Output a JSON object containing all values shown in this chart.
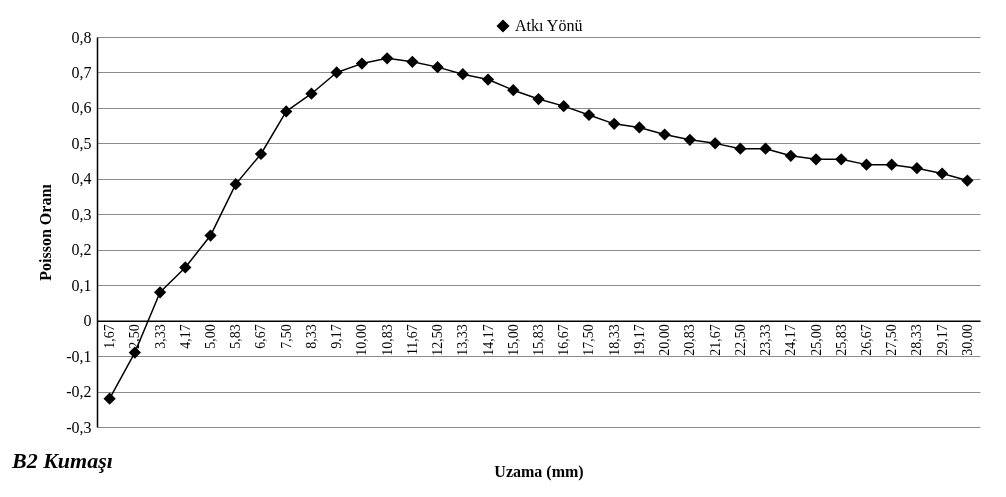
{
  "chart_data": {
    "type": "line",
    "xlabel": "Uzama (mm)",
    "ylabel": "Poisson Oranı",
    "annotations": [
      "B2 Kumaşı"
    ],
    "categories": [
      "1,67",
      "2,50",
      "3,33",
      "4,17",
      "5,00",
      "5,83",
      "6,67",
      "7,50",
      "8,33",
      "9,17",
      "10,00",
      "10,83",
      "11,67",
      "12,50",
      "13,33",
      "14,17",
      "15,00",
      "15,83",
      "16,67",
      "17,50",
      "18,33",
      "19,17",
      "20,00",
      "20,83",
      "21,67",
      "22,50",
      "23,33",
      "24,17",
      "25,00",
      "25,83",
      "26,67",
      "27,50",
      "28,33",
      "29,17",
      "30,00"
    ],
    "series": [
      {
        "name": "Atkı Yönü",
        "color": "#000000",
        "values": [
          -0.22,
          -0.09,
          0.08,
          0.15,
          0.24,
          0.385,
          0.47,
          0.59,
          0.64,
          0.7,
          0.725,
          0.74,
          0.73,
          0.715,
          0.695,
          0.68,
          0.65,
          0.625,
          0.605,
          0.58,
          0.555,
          0.545,
          0.525,
          0.51,
          0.5,
          0.485,
          0.485,
          0.465,
          0.455,
          0.455,
          0.44,
          0.44,
          0.43,
          0.415,
          0.395
        ]
      }
    ],
    "ylim": [
      -0.3,
      0.8
    ],
    "yticks": [
      {
        "value": -0.3,
        "label": "-0,3"
      },
      {
        "value": -0.2,
        "label": "-0,2"
      },
      {
        "value": -0.1,
        "label": "-0,1"
      },
      0,
      {
        "value": 0.1,
        "label": "0,1"
      },
      {
        "value": 0.2,
        "label": "0,2"
      },
      {
        "value": 0.3,
        "label": "0,3"
      },
      {
        "value": 0.4,
        "label": "0,4"
      },
      {
        "value": 0.5,
        "label": "0,5"
      },
      {
        "value": 0.6,
        "label": "0,6"
      },
      {
        "value": 0.7,
        "label": "0,7"
      },
      {
        "value": 0.8,
        "label": "0,8"
      }
    ],
    "grid": "y",
    "legend": "top",
    "marker": "diamond",
    "line_style": "solid"
  }
}
